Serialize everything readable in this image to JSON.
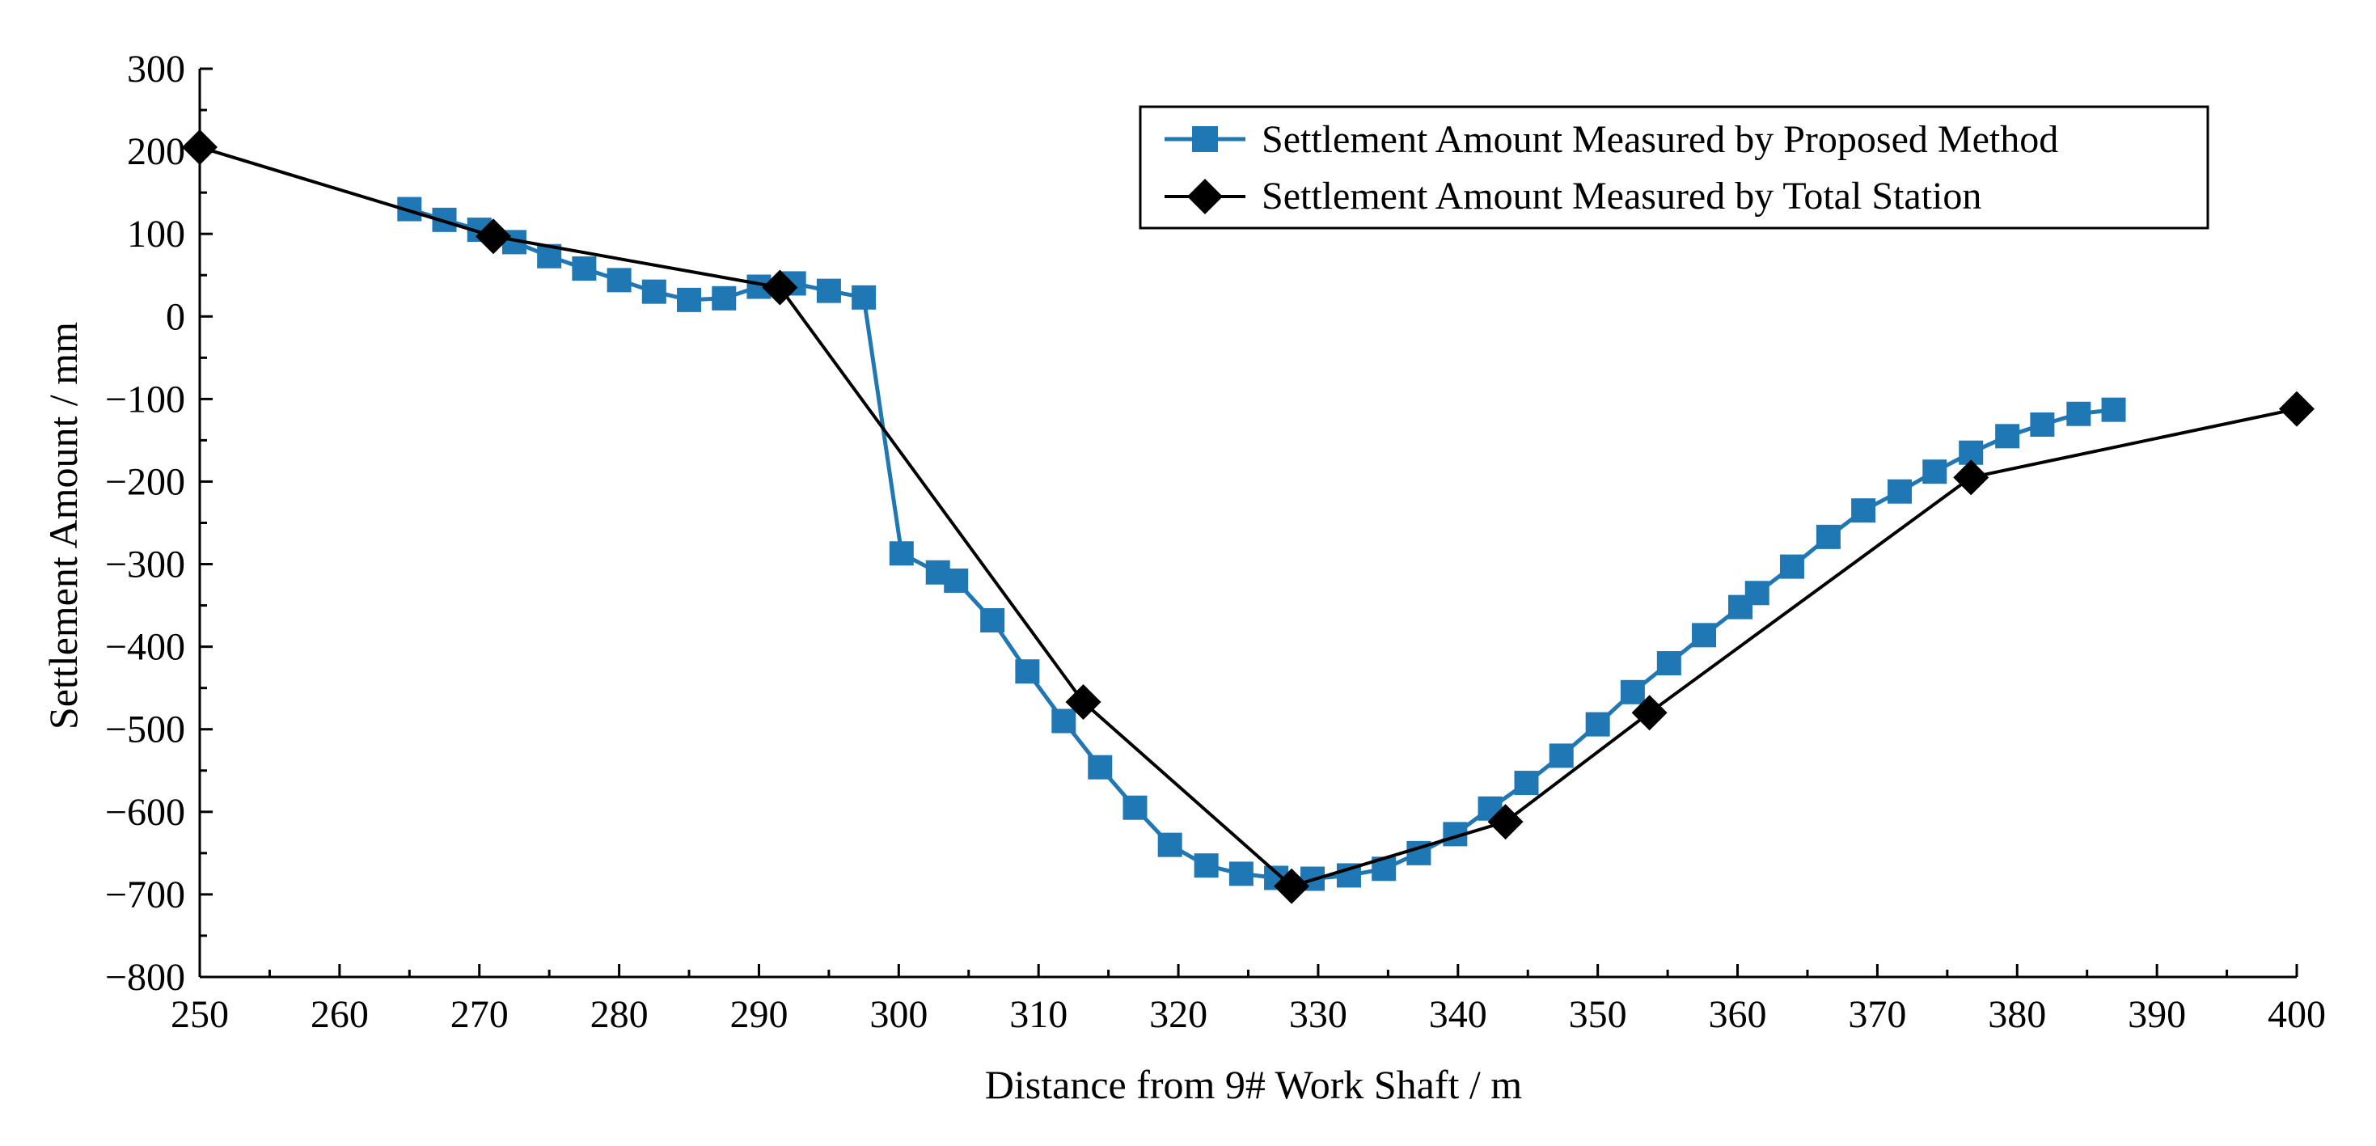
{
  "chart_data": {
    "type": "line",
    "title": "",
    "xlabel": "Distance from 9# Work Shaft / m",
    "ylabel": "Settlement Amount / mm",
    "xlim": [
      250,
      400
    ],
    "ylim": [
      -800,
      300
    ],
    "x_ticks": [
      250,
      260,
      270,
      280,
      290,
      300,
      310,
      320,
      330,
      340,
      350,
      360,
      370,
      380,
      390,
      400
    ],
    "y_ticks": [
      300,
      200,
      100,
      0,
      -100,
      -200,
      -300,
      -400,
      -500,
      -600,
      -700,
      -800
    ],
    "y_tick_labels": [
      "300",
      "200",
      "100",
      "0",
      "−100",
      "−200",
      "−300",
      "−400",
      "−500",
      "−600",
      "−700",
      "−800"
    ],
    "grid": false,
    "legend_position": "top-right",
    "series": [
      {
        "name": "Settlement Amount Measured by Proposed Method",
        "color": "#1f77b4",
        "marker": "square",
        "points": [
          [
            265,
            130
          ],
          [
            267.5,
            117
          ],
          [
            270,
            105
          ],
          [
            272.5,
            90
          ],
          [
            275,
            73
          ],
          [
            277.5,
            58
          ],
          [
            280,
            44
          ],
          [
            282.5,
            30
          ],
          [
            285,
            20
          ],
          [
            287.5,
            22
          ],
          [
            290,
            36
          ],
          [
            292.5,
            40
          ],
          [
            295,
            31
          ],
          [
            297.5,
            23
          ],
          [
            300.2,
            -287
          ],
          [
            302.8,
            -310
          ],
          [
            304.1,
            -320
          ],
          [
            306.7,
            -368
          ],
          [
            309.2,
            -430
          ],
          [
            311.8,
            -490
          ],
          [
            314.4,
            -546
          ],
          [
            316.9,
            -595
          ],
          [
            319.4,
            -640
          ],
          [
            322,
            -665
          ],
          [
            324.5,
            -675
          ],
          [
            327,
            -680
          ],
          [
            329.6,
            -681
          ],
          [
            332.2,
            -677
          ],
          [
            334.7,
            -669
          ],
          [
            337.2,
            -650
          ],
          [
            339.8,
            -627
          ],
          [
            342.3,
            -596
          ],
          [
            344.9,
            -565
          ],
          [
            347.4,
            -532
          ],
          [
            350,
            -494
          ],
          [
            352.5,
            -455
          ],
          [
            355.1,
            -420
          ],
          [
            357.6,
            -386
          ],
          [
            360.2,
            -352
          ],
          [
            361.4,
            -335
          ],
          [
            363.9,
            -303
          ],
          [
            366.5,
            -267
          ],
          [
            369,
            -235
          ],
          [
            371.6,
            -212
          ],
          [
            374.1,
            -188
          ],
          [
            376.7,
            -165
          ],
          [
            379.3,
            -145
          ],
          [
            381.8,
            -131
          ],
          [
            384.4,
            -118
          ],
          [
            386.9,
            -113
          ]
        ]
      },
      {
        "name": "Settlement Amount Measured by Total Station",
        "color": "#000000",
        "marker": "diamond",
        "points": [
          [
            250,
            205
          ],
          [
            271,
            97
          ],
          [
            291.5,
            35
          ],
          [
            313.2,
            -467
          ],
          [
            328.1,
            -690
          ],
          [
            343.4,
            -612
          ],
          [
            353.7,
            -480
          ],
          [
            376.7,
            -195
          ],
          [
            400,
            -112
          ]
        ]
      }
    ]
  }
}
